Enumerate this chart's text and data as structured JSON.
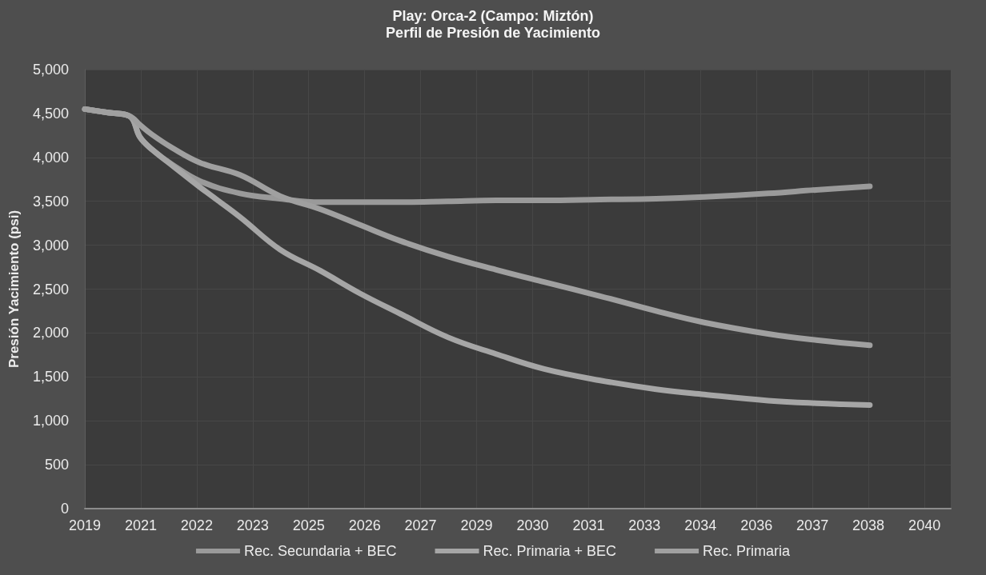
{
  "chart_data": {
    "type": "line",
    "title": "Play: Orca-2 (Campo: Miztón)",
    "subtitle": "Perfil de Presión de Yacimiento",
    "ylabel": "Presión Yacimiento (psi)",
    "x": [
      "2019-08-26",
      "2020-03-20",
      "2020-09-29",
      "2020-12-31",
      "2021-04-17",
      "2021-10-13",
      "2022-06-20",
      "2023-06-13",
      "2024-06-04",
      "2025-05-28",
      "2026-05-20",
      "2027-05-13",
      "2028-07-15",
      "2029-09-17",
      "2030-11-20",
      "2032-04-03",
      "2033-08-16",
      "2034-10-19",
      "2036-05-13",
      "2037-07-16",
      "2038-11-07"
    ],
    "xlim": [
      "2019-08-26",
      "2040-10-30"
    ],
    "xticks": [
      {
        "value": "2019-08-26",
        "label": "2019"
      },
      {
        "value": "2021-01-07",
        "label": "2021"
      },
      {
        "value": "2022-05-22",
        "label": "2022"
      },
      {
        "value": "2023-10-04",
        "label": "2023"
      },
      {
        "value": "2025-02-15",
        "label": "2025"
      },
      {
        "value": "2026-06-30",
        "label": "2026"
      },
      {
        "value": "2027-11-12",
        "label": "2027"
      },
      {
        "value": "2029-03-26",
        "label": "2029"
      },
      {
        "value": "2030-08-08",
        "label": "2030"
      },
      {
        "value": "2031-12-21",
        "label": "2031"
      },
      {
        "value": "2033-05-04",
        "label": "2033"
      },
      {
        "value": "2034-09-16",
        "label": "2034"
      },
      {
        "value": "2036-01-29",
        "label": "2036"
      },
      {
        "value": "2037-06-12",
        "label": "2037"
      },
      {
        "value": "2038-10-25",
        "label": "2038"
      },
      {
        "value": "2040-03-09",
        "label": "2040"
      }
    ],
    "ylim": [
      0,
      5000
    ],
    "yticks": [
      0,
      500,
      {
        "value": 1000,
        "label": "1,000"
      },
      {
        "value": 1500,
        "label": "1,500"
      },
      {
        "value": 2000,
        "label": "2,000"
      },
      {
        "value": 2500,
        "label": "2,500"
      },
      {
        "value": 3000,
        "label": "3,000"
      },
      {
        "value": 3500,
        "label": "3,500"
      },
      {
        "value": 4000,
        "label": "4,000"
      },
      {
        "value": 4500,
        "label": "4,500"
      },
      {
        "value": 5000,
        "label": "5,000"
      }
    ],
    "series": [
      {
        "name": "Rec. Secundaria + BEC",
        "color": "#9a9a9a",
        "values": [
          4550,
          4510,
          4470,
          4230,
          4090,
          3920,
          3730,
          3590,
          3530,
          3490,
          3490,
          3490,
          3500,
          3510,
          3510,
          3520,
          3530,
          3550,
          3590,
          3630,
          3670
        ]
      },
      {
        "name": "Rec. Primaria + BEC",
        "color": "#a6a6a6",
        "values": [
          4550,
          4510,
          4470,
          4230,
          4090,
          3910,
          3660,
          3320,
          2950,
          2710,
          2450,
          2220,
          1950,
          1760,
          1590,
          1460,
          1360,
          1300,
          1230,
          1200,
          1180
        ]
      },
      {
        "name": "Rec. Primaria",
        "color": "#a0a0a0",
        "values": [
          4550,
          4510,
          4470,
          4370,
          4260,
          4110,
          3940,
          3800,
          3560,
          3410,
          3230,
          3050,
          2870,
          2720,
          2580,
          2420,
          2250,
          2120,
          1990,
          1920,
          1860
        ]
      }
    ],
    "grid": true,
    "legend": "bottom",
    "marker": "none",
    "line_style": "solid"
  }
}
